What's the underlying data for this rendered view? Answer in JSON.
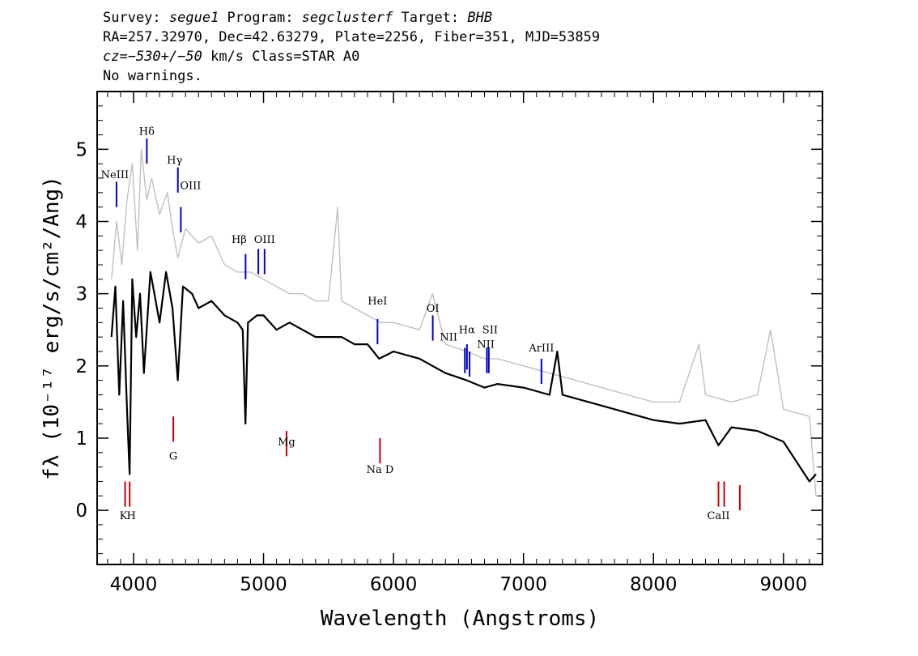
{
  "header": {
    "line1": {
      "survey_label": "Survey: ",
      "survey": "segue1",
      "program_label": " Program: ",
      "program": "segclusterf",
      "target_label": " Target: ",
      "target": "BHB"
    },
    "line2": "RA=257.32970, Dec=42.63279, Plate=2256, Fiber=351, MJD=53859",
    "line3": {
      "cz_label": "cz=",
      "cz_value": "−530+/−50",
      "rest": " km/s Class=STAR A0"
    },
    "line4": "No warnings."
  },
  "chart_data": {
    "type": "line",
    "title": "",
    "xlabel": "Wavelength (Angstroms)",
    "ylabel": "fλ (10⁻¹⁷ erg/s/cm²/Ang)",
    "xlim": [
      3720,
      9300
    ],
    "ylim": [
      -0.75,
      5.8
    ],
    "x_ticks": [
      4000,
      5000,
      6000,
      7000,
      8000,
      9000
    ],
    "x_tick_labels": [
      "4000",
      "5000",
      "6000",
      "7000",
      "8000",
      "9000"
    ],
    "y_ticks": [
      0,
      1,
      2,
      3,
      4,
      5
    ],
    "y_tick_labels": [
      "0",
      "1",
      "2",
      "3",
      "4",
      "5"
    ],
    "grid": false,
    "series": [
      {
        "role": "flux",
        "color": "#000000",
        "points": [
          [
            3830,
            2.4
          ],
          [
            3860,
            3.1
          ],
          [
            3890,
            1.6
          ],
          [
            3920,
            2.9
          ],
          [
            3950,
            1.4
          ],
          [
            3970,
            0.5
          ],
          [
            3990,
            3.2
          ],
          [
            4020,
            2.4
          ],
          [
            4050,
            3.0
          ],
          [
            4080,
            1.9
          ],
          [
            4101,
            2.5
          ],
          [
            4130,
            3.3
          ],
          [
            4160,
            3.0
          ],
          [
            4200,
            2.6
          ],
          [
            4250,
            3.3
          ],
          [
            4300,
            2.8
          ],
          [
            4340,
            1.8
          ],
          [
            4380,
            3.1
          ],
          [
            4450,
            3.0
          ],
          [
            4500,
            2.8
          ],
          [
            4600,
            2.9
          ],
          [
            4700,
            2.7
          ],
          [
            4800,
            2.6
          ],
          [
            4840,
            2.5
          ],
          [
            4861,
            1.2
          ],
          [
            4880,
            2.6
          ],
          [
            4950,
            2.7
          ],
          [
            5000,
            2.7
          ],
          [
            5100,
            2.5
          ],
          [
            5200,
            2.6
          ],
          [
            5300,
            2.5
          ],
          [
            5400,
            2.4
          ],
          [
            5500,
            2.4
          ],
          [
            5600,
            2.4
          ],
          [
            5700,
            2.3
          ],
          [
            5800,
            2.3
          ],
          [
            5890,
            2.1
          ],
          [
            6000,
            2.2
          ],
          [
            6200,
            2.1
          ],
          [
            6400,
            1.9
          ],
          [
            6563,
            1.8
          ],
          [
            6700,
            1.7
          ],
          [
            6800,
            1.75
          ],
          [
            7000,
            1.7
          ],
          [
            7200,
            1.6
          ],
          [
            7260,
            2.2
          ],
          [
            7300,
            1.6
          ],
          [
            7400,
            1.55
          ],
          [
            7600,
            1.45
          ],
          [
            7800,
            1.35
          ],
          [
            8000,
            1.25
          ],
          [
            8200,
            1.2
          ],
          [
            8400,
            1.25
          ],
          [
            8500,
            0.9
          ],
          [
            8600,
            1.15
          ],
          [
            8800,
            1.1
          ],
          [
            9000,
            0.95
          ],
          [
            9200,
            0.4
          ],
          [
            9250,
            0.5
          ]
        ]
      },
      {
        "role": "error",
        "color": "#c0c0c0",
        "points": [
          [
            3830,
            3.2
          ],
          [
            3870,
            4.0
          ],
          [
            3910,
            3.4
          ],
          [
            3950,
            4.3
          ],
          [
            3990,
            4.8
          ],
          [
            4030,
            3.6
          ],
          [
            4060,
            5.0
          ],
          [
            4101,
            4.3
          ],
          [
            4140,
            4.6
          ],
          [
            4200,
            4.1
          ],
          [
            4260,
            4.4
          ],
          [
            4300,
            3.9
          ],
          [
            4340,
            3.5
          ],
          [
            4400,
            3.9
          ],
          [
            4500,
            3.7
          ],
          [
            4600,
            3.8
          ],
          [
            4700,
            3.4
          ],
          [
            4800,
            3.3
          ],
          [
            4900,
            3.3
          ],
          [
            5000,
            3.2
          ],
          [
            5100,
            3.1
          ],
          [
            5200,
            3.0
          ],
          [
            5300,
            3.0
          ],
          [
            5400,
            2.9
          ],
          [
            5500,
            2.9
          ],
          [
            5570,
            4.2
          ],
          [
            5600,
            2.9
          ],
          [
            5700,
            2.8
          ],
          [
            5800,
            2.7
          ],
          [
            5900,
            2.6
          ],
          [
            6000,
            2.6
          ],
          [
            6200,
            2.5
          ],
          [
            6300,
            3.0
          ],
          [
            6400,
            2.3
          ],
          [
            6563,
            2.2
          ],
          [
            6700,
            2.1
          ],
          [
            6800,
            2.1
          ],
          [
            7000,
            2.0
          ],
          [
            7200,
            1.9
          ],
          [
            7400,
            1.8
          ],
          [
            7600,
            1.7
          ],
          [
            7800,
            1.6
          ],
          [
            8000,
            1.5
          ],
          [
            8200,
            1.5
          ],
          [
            8350,
            2.3
          ],
          [
            8400,
            1.6
          ],
          [
            8600,
            1.5
          ],
          [
            8800,
            1.6
          ],
          [
            8900,
            2.5
          ],
          [
            9000,
            1.4
          ],
          [
            9200,
            1.3
          ],
          [
            9250,
            0.2
          ]
        ]
      }
    ],
    "emission_lines": [
      {
        "label": "NeIII",
        "wavelength": 3869,
        "color": "#0000cc"
      },
      {
        "label": "Hδ",
        "wavelength": 4102,
        "color": "#0000cc"
      },
      {
        "label": "Hγ",
        "wavelength": 4341,
        "color": "#0000cc"
      },
      {
        "label": "OIII",
        "wavelength": 4364,
        "color": "#0000cc"
      },
      {
        "label": "Hβ",
        "wavelength": 4862,
        "color": "#0000cc"
      },
      {
        "label": "OIII",
        "wavelength": 4960,
        "color": "#0000cc"
      },
      {
        "label": "OIII",
        "wavelength": 5008,
        "color": "#0000cc"
      },
      {
        "label": "HeI",
        "wavelength": 5877,
        "color": "#0000cc"
      },
      {
        "label": "OI",
        "wavelength": 6302,
        "color": "#0000cc"
      },
      {
        "label": "NII",
        "wavelength": 6549,
        "color": "#0000cc"
      },
      {
        "label": "Hα",
        "wavelength": 6565,
        "color": "#0000cc"
      },
      {
        "label": "NII",
        "wavelength": 6585,
        "color": "#0000cc"
      },
      {
        "label": "SII",
        "wavelength": 6718,
        "color": "#0000cc"
      },
      {
        "label": "SII",
        "wavelength": 6733,
        "color": "#0000cc"
      },
      {
        "label": "ArIII",
        "wavelength": 7138,
        "color": "#0000cc"
      }
    ],
    "absorption_lines": [
      {
        "label": "K",
        "wavelength": 3935,
        "color": "#cc0000"
      },
      {
        "label": "H",
        "wavelength": 3970,
        "color": "#cc0000"
      },
      {
        "label": "G",
        "wavelength": 4306,
        "color": "#cc0000"
      },
      {
        "label": "Mg",
        "wavelength": 5177,
        "color": "#cc0000"
      },
      {
        "label": "Na D",
        "wavelength": 5896,
        "color": "#cc0000"
      },
      {
        "label": "CaII",
        "wavelength": 8500,
        "color": "#cc0000"
      },
      {
        "label": "CaII",
        "wavelength": 8544,
        "color": "#cc0000"
      },
      {
        "label": "CaII",
        "wavelength": 8664,
        "color": "#cc0000"
      }
    ]
  }
}
